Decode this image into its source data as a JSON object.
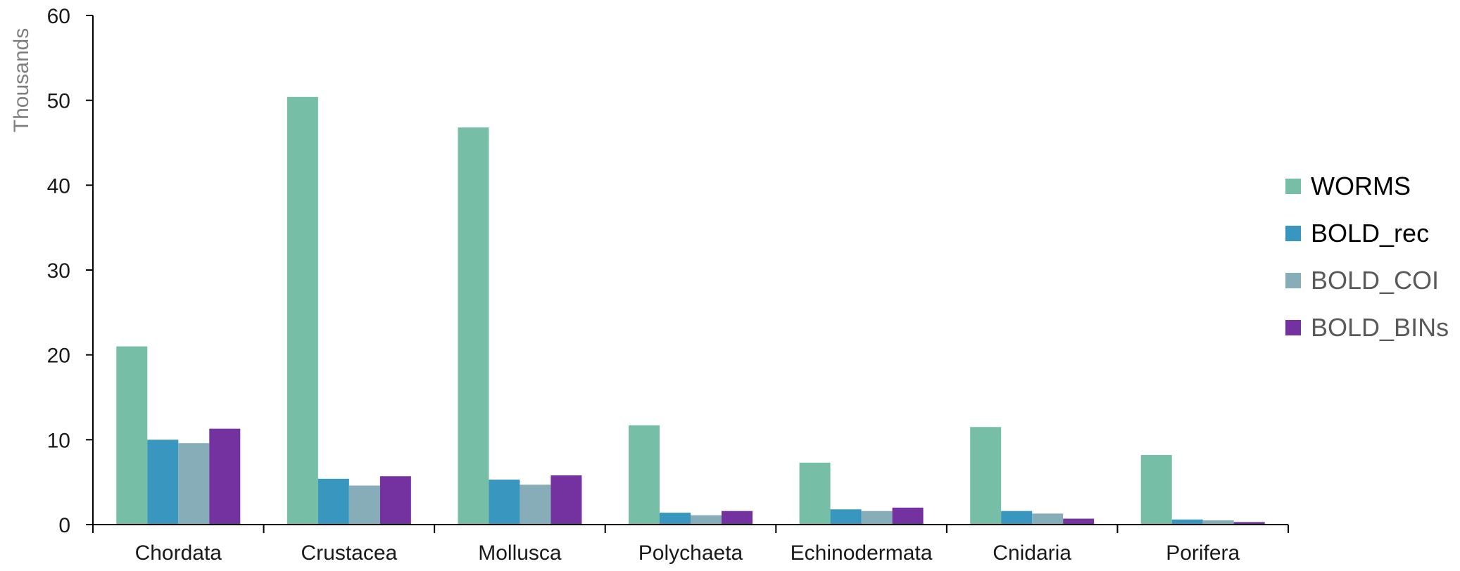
{
  "chart_data": {
    "type": "bar",
    "title": "",
    "xlabel": "",
    "ylabel": "Thousands",
    "ylim": [
      0,
      60
    ],
    "yticks": [
      0,
      10,
      20,
      30,
      40,
      50,
      60
    ],
    "grid": false,
    "legend_position": "right",
    "categories": [
      "Chordata",
      "Crustacea",
      "Mollusca",
      "Polychaeta",
      "Echinodermata",
      "Cnidaria",
      "Porifera"
    ],
    "series": [
      {
        "name": "WORMS",
        "color": "#76bfa6",
        "values": [
          21.0,
          50.4,
          46.8,
          11.7,
          7.3,
          11.5,
          8.2
        ]
      },
      {
        "name": "BOLD_rec",
        "color": "#3896bf",
        "values": [
          10.0,
          5.4,
          5.3,
          1.4,
          1.8,
          1.6,
          0.6
        ]
      },
      {
        "name": "BOLD_COI",
        "color": "#87adb8",
        "values": [
          9.6,
          4.6,
          4.7,
          1.1,
          1.6,
          1.3,
          0.5
        ]
      },
      {
        "name": "BOLD_BINs",
        "color": "#7432a0",
        "values": [
          11.3,
          5.7,
          5.8,
          1.6,
          2.0,
          0.7,
          0.3
        ]
      }
    ],
    "legend_text_colors": [
      "#000000",
      "#000000",
      "#595959",
      "#595959"
    ]
  }
}
